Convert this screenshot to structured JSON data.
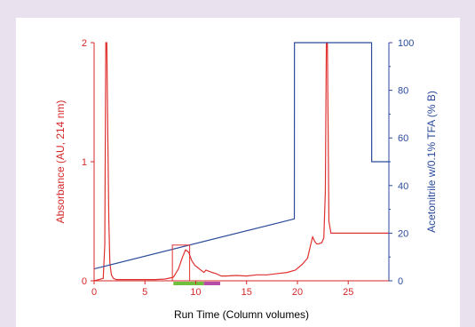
{
  "chart_data": {
    "type": "line",
    "xlabel": "Run Time (Column volumes)",
    "ylabel_left": "Absorbance (AU, 214 nm)",
    "ylabel_right": "Acetonitrile w/0.1% TFA (% B)",
    "xlim": [
      0,
      29
    ],
    "ylim_left": [
      0,
      2
    ],
    "ylim_right": [
      0,
      100
    ],
    "x_ticks": [
      0,
      5,
      10,
      15,
      20,
      25
    ],
    "y_left_ticks": [
      0,
      1,
      2
    ],
    "y_right_ticks": [
      0,
      20,
      40,
      60,
      80,
      100
    ],
    "grid": false,
    "colors": {
      "absorbance": "#e03131",
      "acetonitrile": "#2b4a9c",
      "axis_left": "#d62728",
      "axis_right": "#2b4a9c",
      "fraction_green": "#6fbf3f",
      "fraction_magenta": "#b54aa8",
      "background": "#e9e2ee"
    },
    "series": [
      {
        "axis": "left",
        "x": [
          0,
          0.9,
          1.05,
          1.15,
          1.25,
          1.35,
          1.45,
          1.55,
          1.7,
          1.9,
          2.2,
          3,
          4,
          5,
          6,
          7,
          7.8,
          8.3,
          8.7,
          9.0,
          9.3,
          9.6,
          9.9,
          10.2,
          10.5,
          10.8,
          11.0,
          11.3,
          11.6,
          12.0,
          12.5,
          13,
          14,
          15,
          16,
          17,
          18,
          19,
          19.8,
          20.5,
          21.0,
          21.3,
          21.5,
          21.7,
          21.9,
          22.1,
          22.4,
          22.6,
          22.75,
          22.85,
          22.95,
          23.1,
          23.3,
          24,
          26,
          29
        ],
        "y": [
          0.0,
          0.02,
          0.3,
          2.0,
          2.0,
          1.2,
          0.5,
          0.15,
          0.05,
          0.02,
          0.01,
          0.01,
          0.01,
          0.01,
          0.01,
          0.015,
          0.03,
          0.1,
          0.2,
          0.26,
          0.24,
          0.17,
          0.13,
          0.11,
          0.09,
          0.07,
          0.09,
          0.08,
          0.07,
          0.06,
          0.04,
          0.04,
          0.045,
          0.04,
          0.05,
          0.05,
          0.06,
          0.07,
          0.09,
          0.14,
          0.19,
          0.3,
          0.37,
          0.33,
          0.31,
          0.31,
          0.32,
          0.36,
          0.75,
          2.0,
          2.0,
          0.5,
          0.4,
          0.4,
          0.4,
          0.4
        ]
      },
      {
        "axis": "right",
        "x": [
          0,
          19.7,
          19.71,
          27.3,
          27.31,
          29
        ],
        "y": [
          5,
          26,
          100,
          100,
          50,
          50
        ]
      }
    ],
    "annotations": [
      {
        "type": "box",
        "x": [
          7.7,
          9.4
        ],
        "y_left": [
          0.0,
          0.3
        ]
      },
      {
        "type": "fraction_bar",
        "segments": [
          {
            "x": [
              7.8,
              10.8
            ],
            "color": "green"
          },
          {
            "x": [
              10.8,
              12.4
            ],
            "color": "magenta"
          }
        ]
      }
    ]
  }
}
